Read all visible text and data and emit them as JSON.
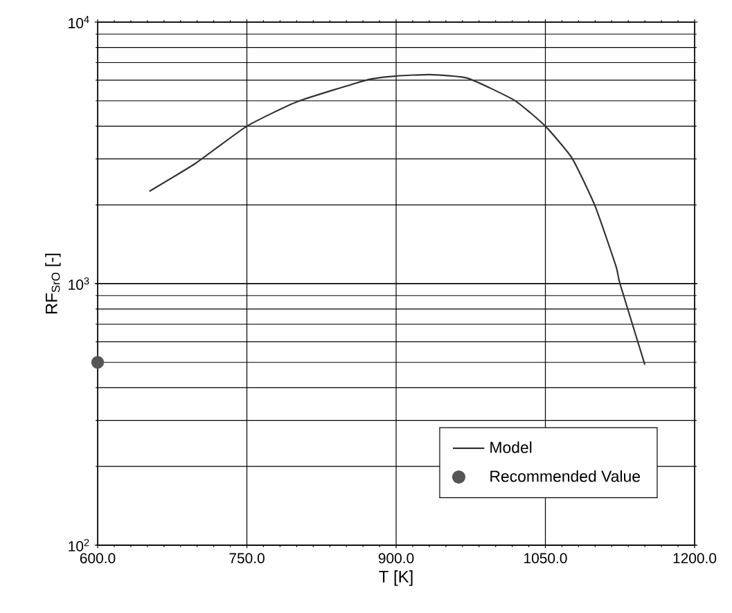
{
  "chart_data": {
    "type": "line",
    "xlabel": "T [K]",
    "ylabel": "RF$_{SrO}$ [-]",
    "log": "y",
    "grid": true,
    "legend": "bottom right",
    "xlim": [
      600,
      1200
    ],
    "ylim": [
      100,
      10000
    ],
    "xticks": [
      {
        "value": 600,
        "label": "600.0"
      },
      {
        "value": 750,
        "label": "750.0"
      },
      {
        "value": 900,
        "label": "900.0"
      },
      {
        "value": 1050,
        "label": "1050.0"
      },
      {
        "value": 1200,
        "label": "1200.0"
      }
    ],
    "yticks": [
      {
        "value": 100,
        "label": "10$^{2}$"
      },
      {
        "value": 1000,
        "label": "10$^{3}$"
      },
      {
        "value": 10000,
        "label": "10$^{4}$"
      }
    ],
    "series": [
      {
        "name": "Model",
        "color": "#333333",
        "marker": "none",
        "line_style": "solid",
        "x": [
          652,
          699,
          750,
          801,
          870,
          900,
          934,
          972,
          1019,
          1050,
          1077,
          1100,
          1121,
          1125,
          1150
        ],
        "values": [
          2255,
          2895,
          4000,
          4970,
          6000,
          6220,
          6300,
          6100,
          5020,
          4000,
          3010,
          1980,
          1165,
          1000,
          490
        ]
      },
      {
        "name": "Recommended Value",
        "type": "scatter",
        "color": "#555555",
        "marker": "circle",
        "x": [
          600
        ],
        "values": [
          500
        ]
      }
    ]
  }
}
